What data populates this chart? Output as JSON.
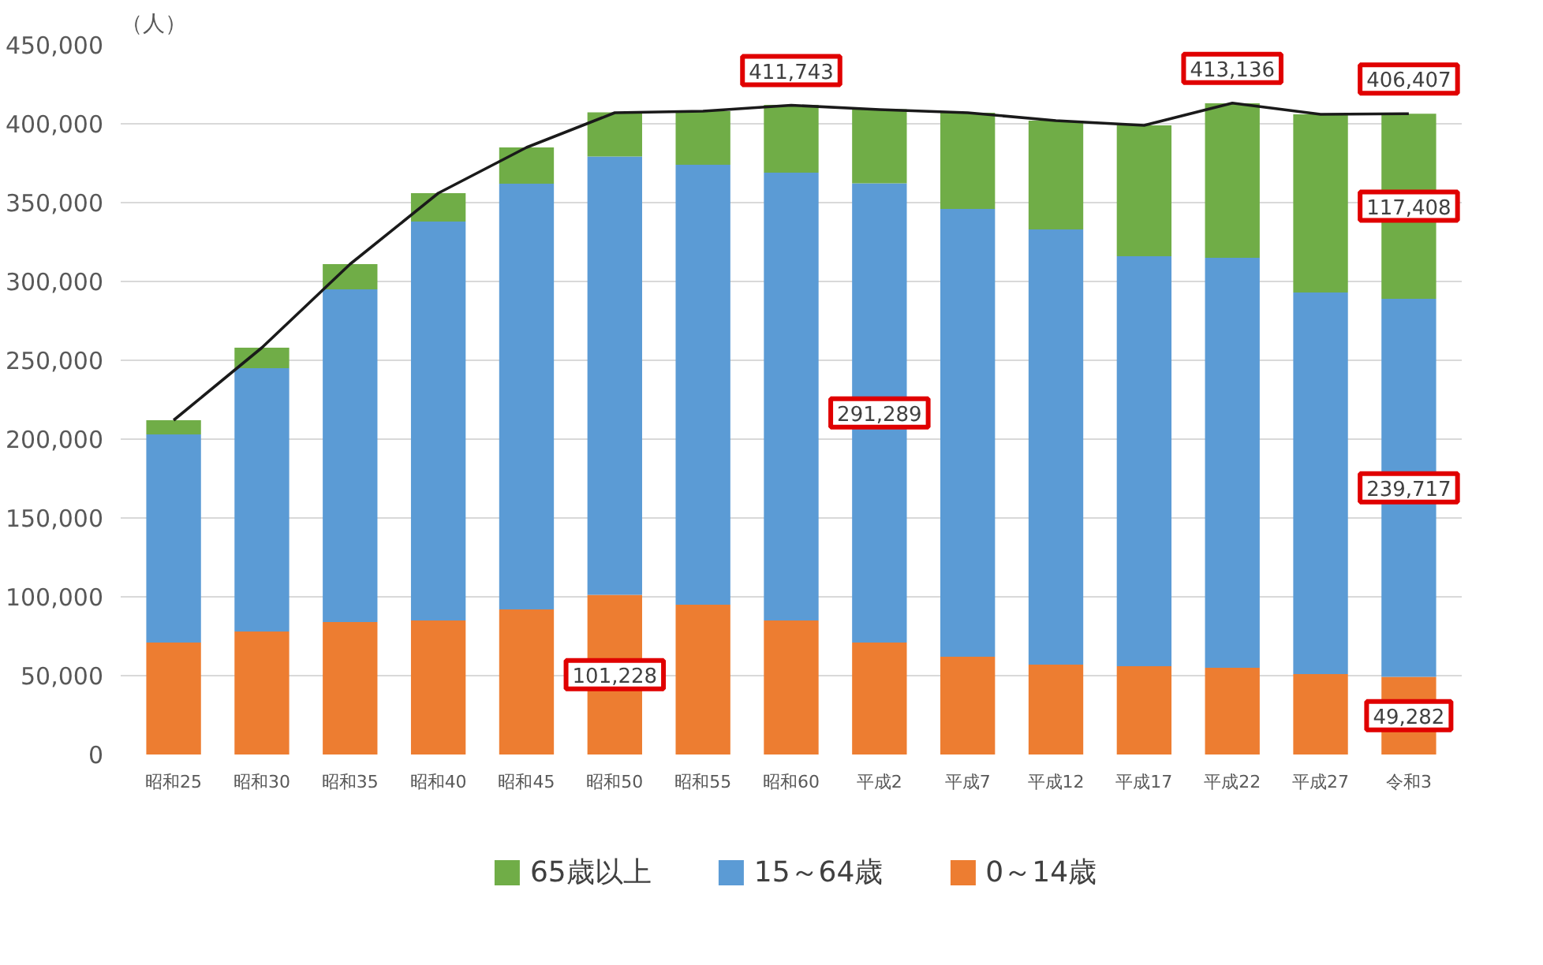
{
  "chart_data": {
    "type": "bar",
    "stacked": true,
    "ylabel": "（人）",
    "categories": [
      "昭和25",
      "昭和30",
      "昭和35",
      "昭和40",
      "昭和45",
      "昭和50",
      "昭和55",
      "昭和60",
      "平成2",
      "平成7",
      "平成12",
      "平成17",
      "平成22",
      "平成27",
      "令和3"
    ],
    "series": [
      {
        "name": "0～14歳",
        "color": "#ed7d31",
        "values": [
          71000,
          78000,
          84000,
          85000,
          92000,
          101228,
          95000,
          85000,
          71000,
          62000,
          57000,
          56000,
          55000,
          51000,
          49282
        ],
        "value_labels": [
          null,
          null,
          null,
          null,
          null,
          "101,228",
          null,
          null,
          null,
          null,
          null,
          null,
          null,
          null,
          "49,282"
        ]
      },
      {
        "name": "15～64歳",
        "color": "#5b9bd5",
        "values": [
          132000,
          167000,
          211000,
          253000,
          270000,
          278000,
          279000,
          284000,
          291289,
          284000,
          276000,
          260000,
          260000,
          242000,
          239717
        ],
        "value_labels": [
          null,
          null,
          null,
          null,
          null,
          null,
          null,
          null,
          "291,289",
          null,
          null,
          null,
          null,
          null,
          "239,717"
        ]
      },
      {
        "name": "65歳以上",
        "color": "#70ad47",
        "values": [
          9000,
          13000,
          16000,
          18000,
          23000,
          28000,
          34000,
          43000,
          47000,
          61000,
          69000,
          83000,
          98000,
          113000,
          117408
        ],
        "value_labels": [
          null,
          null,
          null,
          null,
          null,
          null,
          null,
          null,
          null,
          null,
          null,
          null,
          null,
          null,
          "117,408"
        ]
      },
      {
        "type": "line",
        "color": "#1a1a1a",
        "values": [
          212000,
          258000,
          311000,
          356000,
          385000,
          407000,
          408000,
          411743,
          409000,
          407000,
          402000,
          399000,
          413136,
          406000,
          406407
        ],
        "value_labels": [
          null,
          null,
          null,
          null,
          null,
          null,
          null,
          "411,743",
          null,
          null,
          null,
          null,
          "413,136",
          null,
          "406,407"
        ]
      }
    ],
    "ylim": [
      0,
      450000
    ],
    "yticks": [
      {
        "value": 0,
        "label": "0"
      },
      {
        "value": 50000,
        "label": "50,000"
      },
      {
        "value": 100000,
        "label": "100,000"
      },
      {
        "value": 150000,
        "label": "150,000"
      },
      {
        "value": 200000,
        "label": "200,000"
      },
      {
        "value": 250000,
        "label": "250,000"
      },
      {
        "value": 300000,
        "label": "300,000"
      },
      {
        "value": 350000,
        "label": "350,000"
      },
      {
        "value": 400000,
        "label": "400,000"
      },
      {
        "value": 450000,
        "label": "450,000"
      }
    ],
    "grid": "y",
    "legend": "bottom",
    "marker": "none",
    "line_style": "solid"
  }
}
